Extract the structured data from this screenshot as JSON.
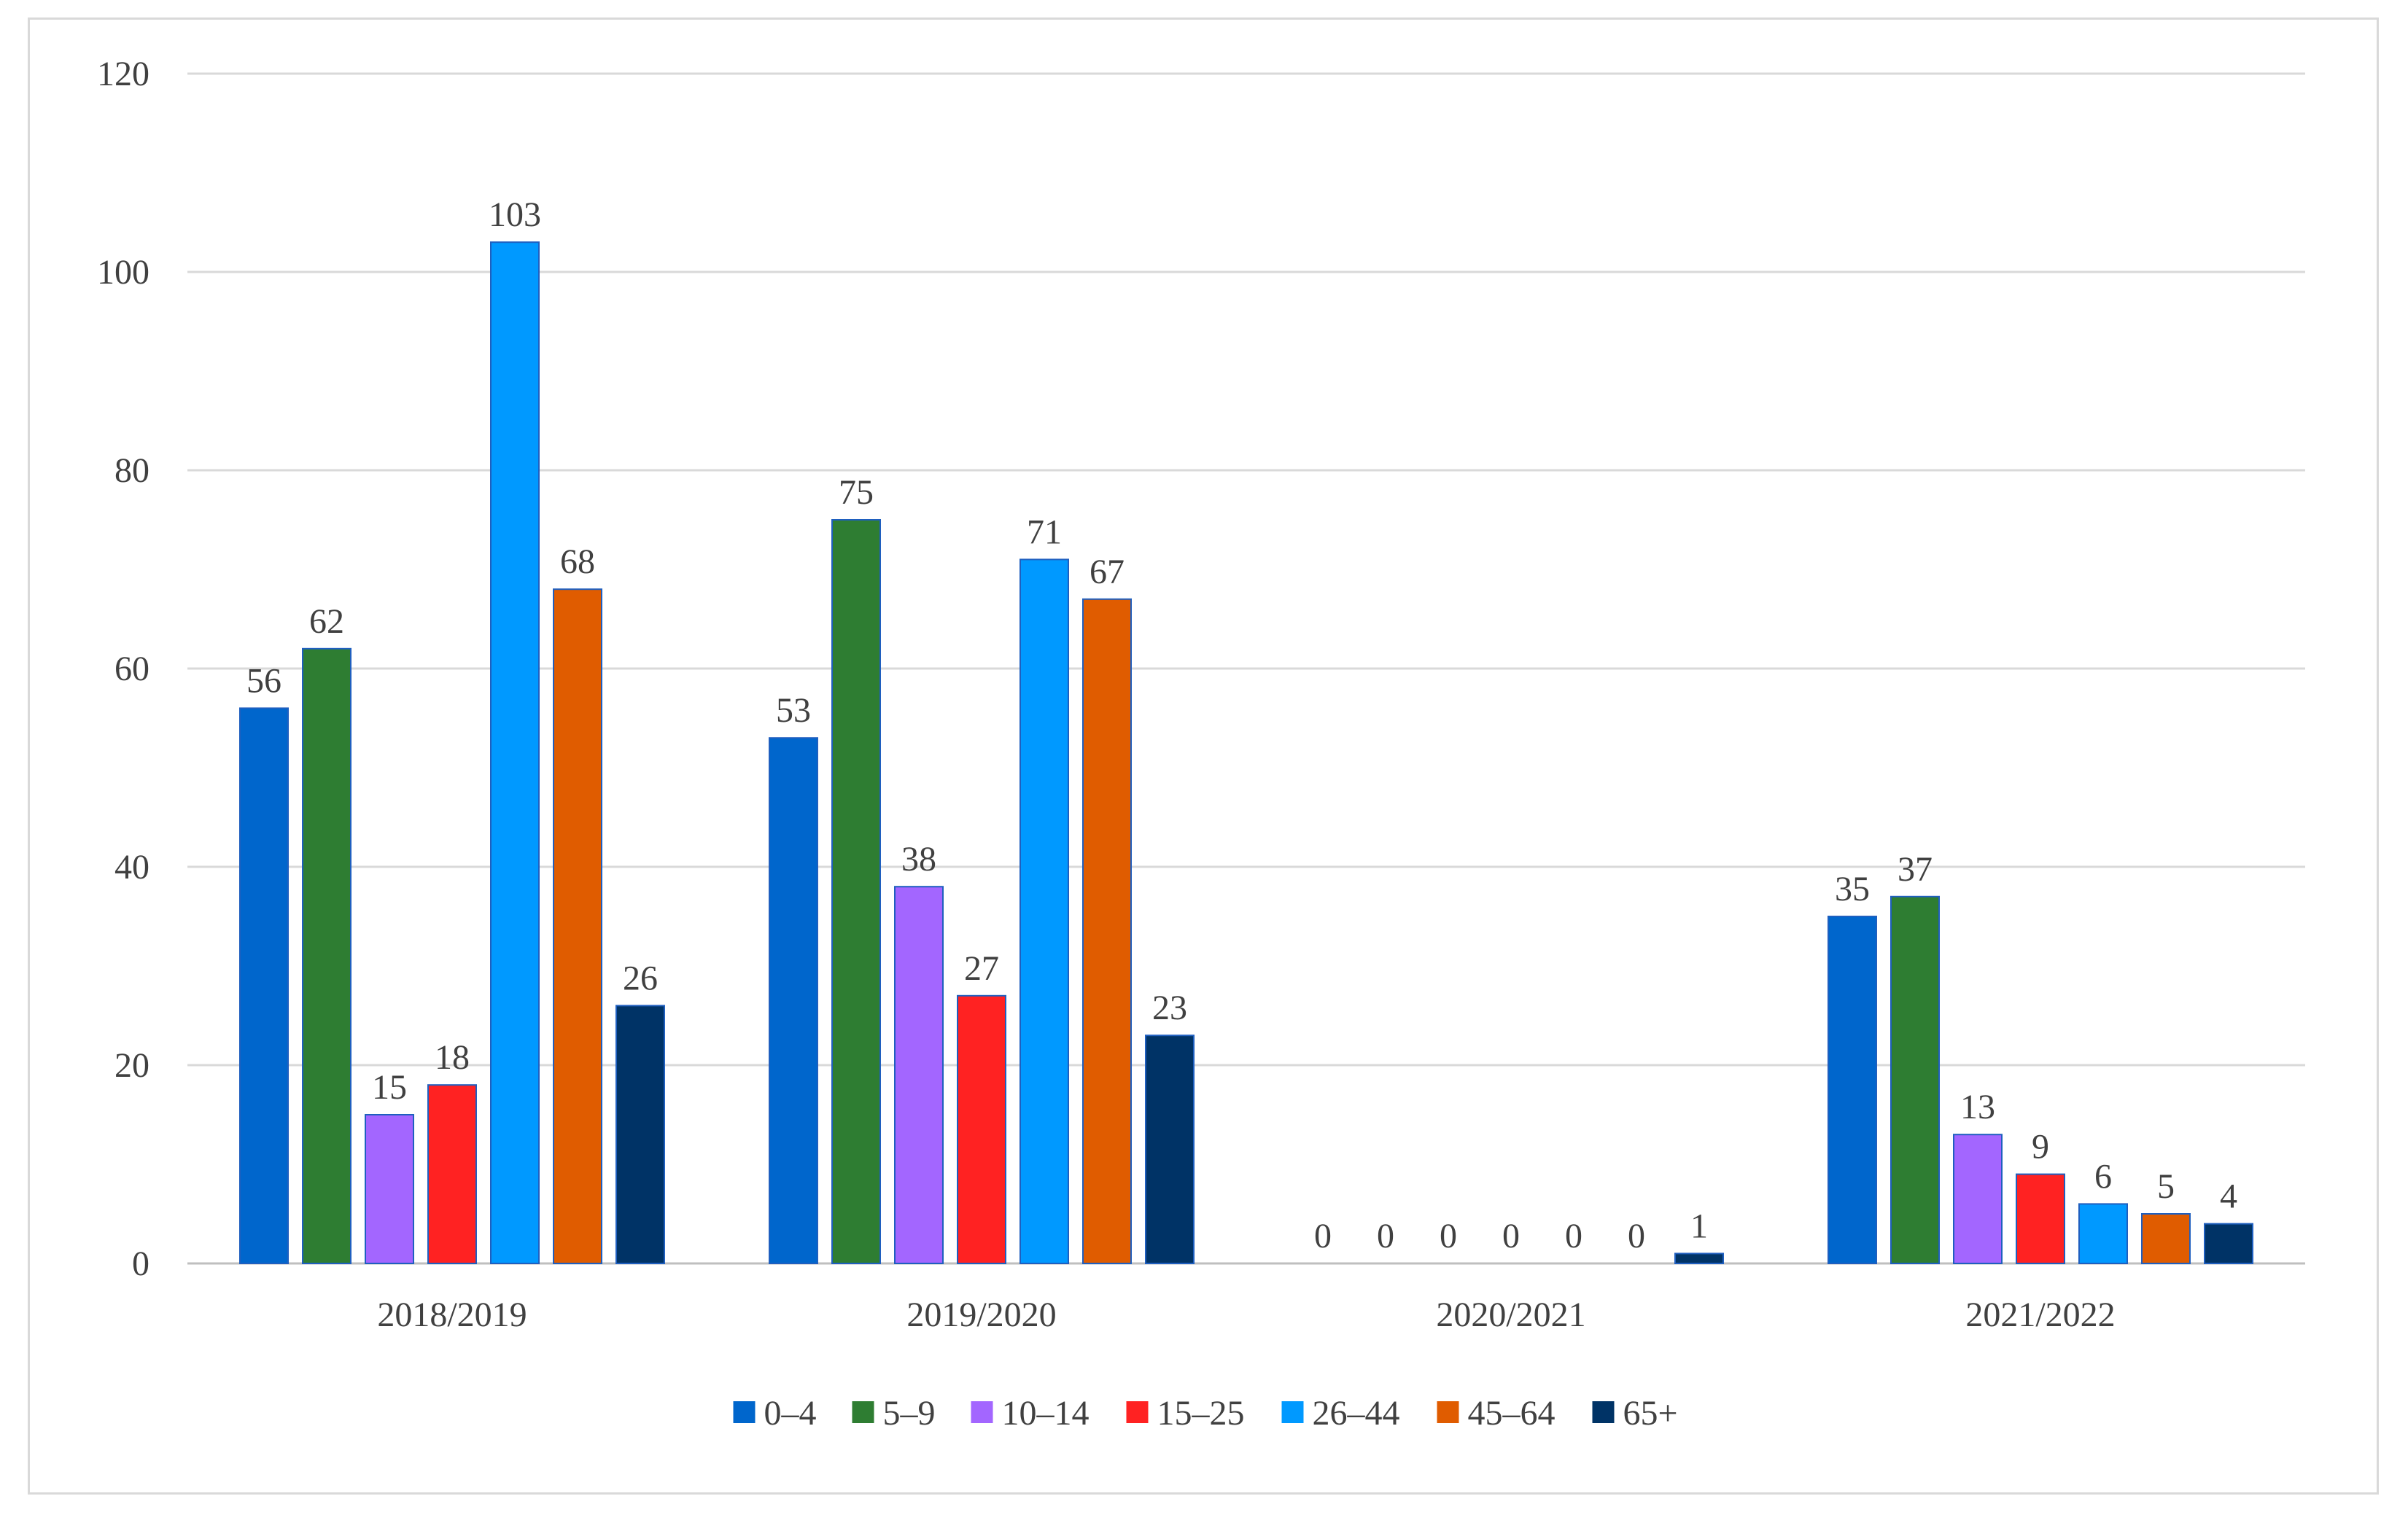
{
  "chart_data": {
    "type": "bar",
    "categories": [
      "2018/2019",
      "2019/2020",
      "2020/2021",
      "2021/2022"
    ],
    "series": [
      {
        "name": "0–4",
        "color": "#0066cc",
        "values": [
          56,
          53,
          0,
          35
        ]
      },
      {
        "name": "5–9",
        "color": "#2e7d32",
        "values": [
          62,
          75,
          0,
          37
        ]
      },
      {
        "name": "10–14",
        "color": "#a366ff",
        "values": [
          15,
          38,
          0,
          13
        ]
      },
      {
        "name": "15–25",
        "color": "#ff2222",
        "values": [
          18,
          27,
          0,
          9
        ]
      },
      {
        "name": "26–44",
        "color": "#0099ff",
        "values": [
          103,
          71,
          0,
          6
        ]
      },
      {
        "name": "45–64",
        "color": "#e05c00",
        "values": [
          68,
          67,
          0,
          5
        ]
      },
      {
        "name": "65+",
        "color": "#003366",
        "values": [
          26,
          23,
          1,
          4
        ]
      }
    ],
    "ylim": [
      0,
      120
    ],
    "yticks": [
      0,
      20,
      40,
      60,
      80,
      100,
      120
    ],
    "grid": true,
    "legend_position": "bottom",
    "title": "",
    "xlabel": "",
    "ylabel": ""
  },
  "colors": {
    "grid": "#d9d9d9",
    "axis": "#bfbfbf",
    "text": "#404040",
    "bar_outline": "#1f5fbf"
  }
}
